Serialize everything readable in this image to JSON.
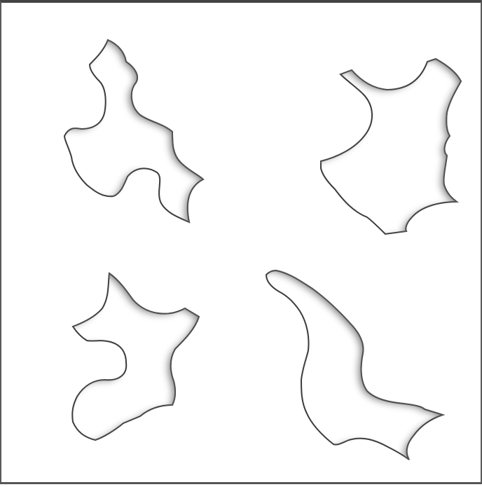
{
  "puzzle": {
    "pieces": [
      {
        "id": "piece-top-left"
      },
      {
        "id": "piece-top-right"
      },
      {
        "id": "piece-bottom-left"
      },
      {
        "id": "piece-bottom-right"
      }
    ],
    "colors": {
      "board_background": "#ffffff",
      "frame": "#4a4a4a",
      "piece_fill": "#ffffff",
      "bevel_dark": "#3a3a3a",
      "bevel_mid": "#9a9a9a",
      "bevel_light": "#f2f2f2"
    }
  }
}
